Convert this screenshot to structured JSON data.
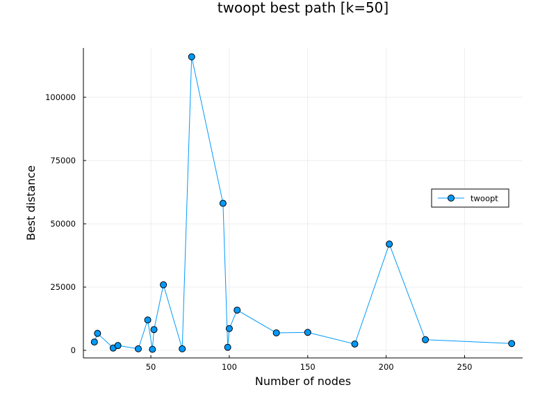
{
  "chart_data": {
    "type": "line",
    "title": "twoopt best path [k=50]",
    "xlabel": "Number of nodes",
    "ylabel": "Best distance",
    "xlim": [
      7,
      287
    ],
    "ylim": [
      -3000,
      119500
    ],
    "xticks": [
      50,
      100,
      150,
      200,
      250
    ],
    "yticks": [
      0,
      25000,
      50000,
      75000,
      100000
    ],
    "xtick_labels": [
      "50",
      "100",
      "150",
      "200",
      "250"
    ],
    "ytick_labels": [
      "0",
      "25000",
      "50000",
      "75000",
      "100000"
    ],
    "grid": true,
    "legend_position": "right",
    "series": [
      {
        "name": "twoopt",
        "color": "#009AFA",
        "marker": "circle",
        "x": [
          14,
          16,
          26,
          29,
          42,
          48,
          51,
          52,
          58,
          70,
          76,
          96,
          99,
          100,
          105,
          130,
          150,
          180,
          202,
          225,
          280
        ],
        "y": [
          3300,
          6700,
          900,
          1900,
          600,
          12000,
          400,
          8200,
          25900,
          600,
          116000,
          58100,
          1200,
          8600,
          15900,
          6900,
          7100,
          2500,
          42000,
          4200,
          2700
        ]
      }
    ]
  }
}
